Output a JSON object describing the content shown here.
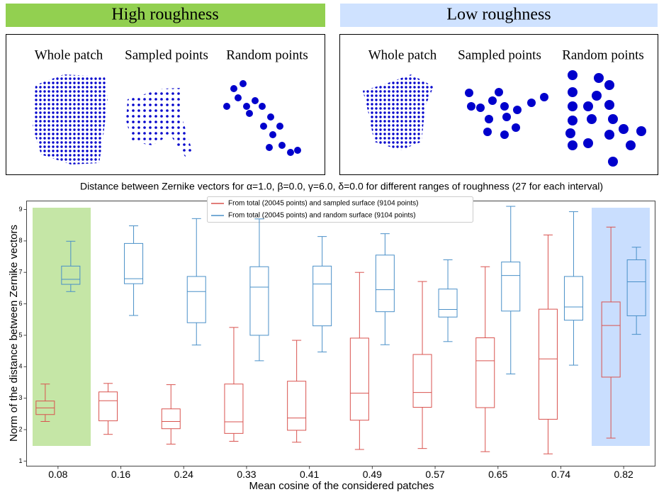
{
  "panels": [
    {
      "title": "High roughness",
      "labels": [
        "Whole patch",
        "Sampled points",
        "Random points"
      ]
    },
    {
      "title": "Low roughness",
      "labels": [
        "Whole patch",
        "Sampled points",
        "Random points"
      ]
    }
  ],
  "chart_data": {
    "type": "box",
    "title": "Distance between Zernike vectors for α=1.0, β=0.0, γ=6.0, δ=0.0 for different ranges of roughness (27 for each interval)",
    "x_label": "Mean cosine of the considered patches",
    "y_label": "Norm of the distance between Zernike vectors",
    "categories": [
      "0.08",
      "0.16",
      "0.24",
      "0.33",
      "0.41",
      "0.49",
      "0.57",
      "0.65",
      "0.74",
      "0.82"
    ],
    "ylim": [
      0.84,
      9.27
    ],
    "yticks": [
      1,
      2,
      3,
      4,
      5,
      6,
      7,
      8,
      9
    ],
    "series": [
      {
        "name": "From total (20045 points) and sampled surface (9104 points)",
        "color": "#d9534f",
        "whislo": [
          2.26,
          1.85,
          1.54,
          1.63,
          1.6,
          1.37,
          1.4,
          1.3,
          1.23,
          1.73
        ],
        "q1": [
          2.48,
          2.28,
          2.03,
          1.88,
          1.98,
          2.3,
          2.71,
          2.7,
          2.33,
          3.67
        ],
        "median": [
          2.69,
          2.92,
          2.26,
          2.25,
          2.37,
          3.16,
          3.18,
          4.19,
          4.25,
          5.31
        ],
        "q3": [
          2.91,
          3.2,
          2.66,
          3.45,
          3.54,
          4.91,
          4.39,
          4.92,
          5.83,
          6.06
        ],
        "whishi": [
          3.45,
          3.47,
          3.43,
          5.25,
          4.84,
          7.0,
          6.71,
          7.18,
          8.19,
          8.44
        ]
      },
      {
        "name": "From total (20045 points) and random surface (9104 points)",
        "color": "#4a90c8",
        "whislo": [
          6.39,
          5.63,
          4.69,
          4.19,
          4.47,
          4.7,
          4.8,
          3.77,
          4.05,
          5.03
        ],
        "q1": [
          6.62,
          6.64,
          5.4,
          5.0,
          5.3,
          5.75,
          5.58,
          5.77,
          5.48,
          5.62
        ],
        "median": [
          6.78,
          6.8,
          6.39,
          6.53,
          6.63,
          6.45,
          5.82,
          6.9,
          5.9,
          6.7
        ],
        "q3": [
          7.2,
          7.92,
          6.87,
          7.18,
          7.2,
          7.55,
          6.47,
          7.33,
          6.87,
          7.4
        ],
        "whishi": [
          7.99,
          8.48,
          8.71,
          8.7,
          8.14,
          8.23,
          7.4,
          9.1,
          8.93,
          7.8
        ]
      }
    ]
  }
}
